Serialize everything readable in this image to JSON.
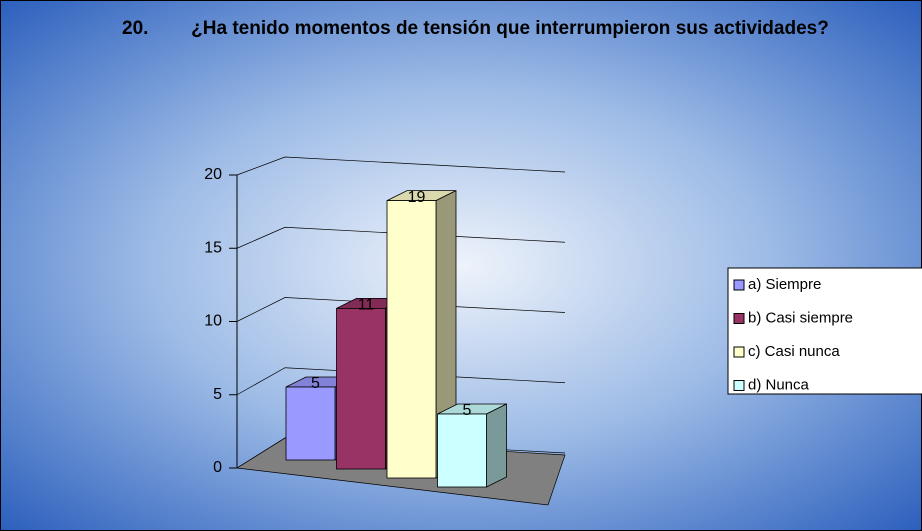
{
  "chart_data": {
    "type": "bar3d",
    "title_number": "20.",
    "title": "¿Ha tenido momentos de tensión que interrumpieron sus actividades?",
    "series": [
      {
        "name": "a) Siempre",
        "color": "#9999ff",
        "values": [
          5
        ]
      },
      {
        "name": "b) Casi siempre",
        "color": "#993366",
        "values": [
          11
        ]
      },
      {
        "name": "c) Casi nunca",
        "color": "#ffffcc",
        "values": [
          19
        ]
      },
      {
        "name": "d) Nunca",
        "color": "#ccffff",
        "values": [
          5
        ]
      }
    ],
    "ylim": [
      0,
      20
    ],
    "yticks": [
      0,
      5,
      10,
      15,
      20
    ],
    "grid": true,
    "legend": "right"
  }
}
